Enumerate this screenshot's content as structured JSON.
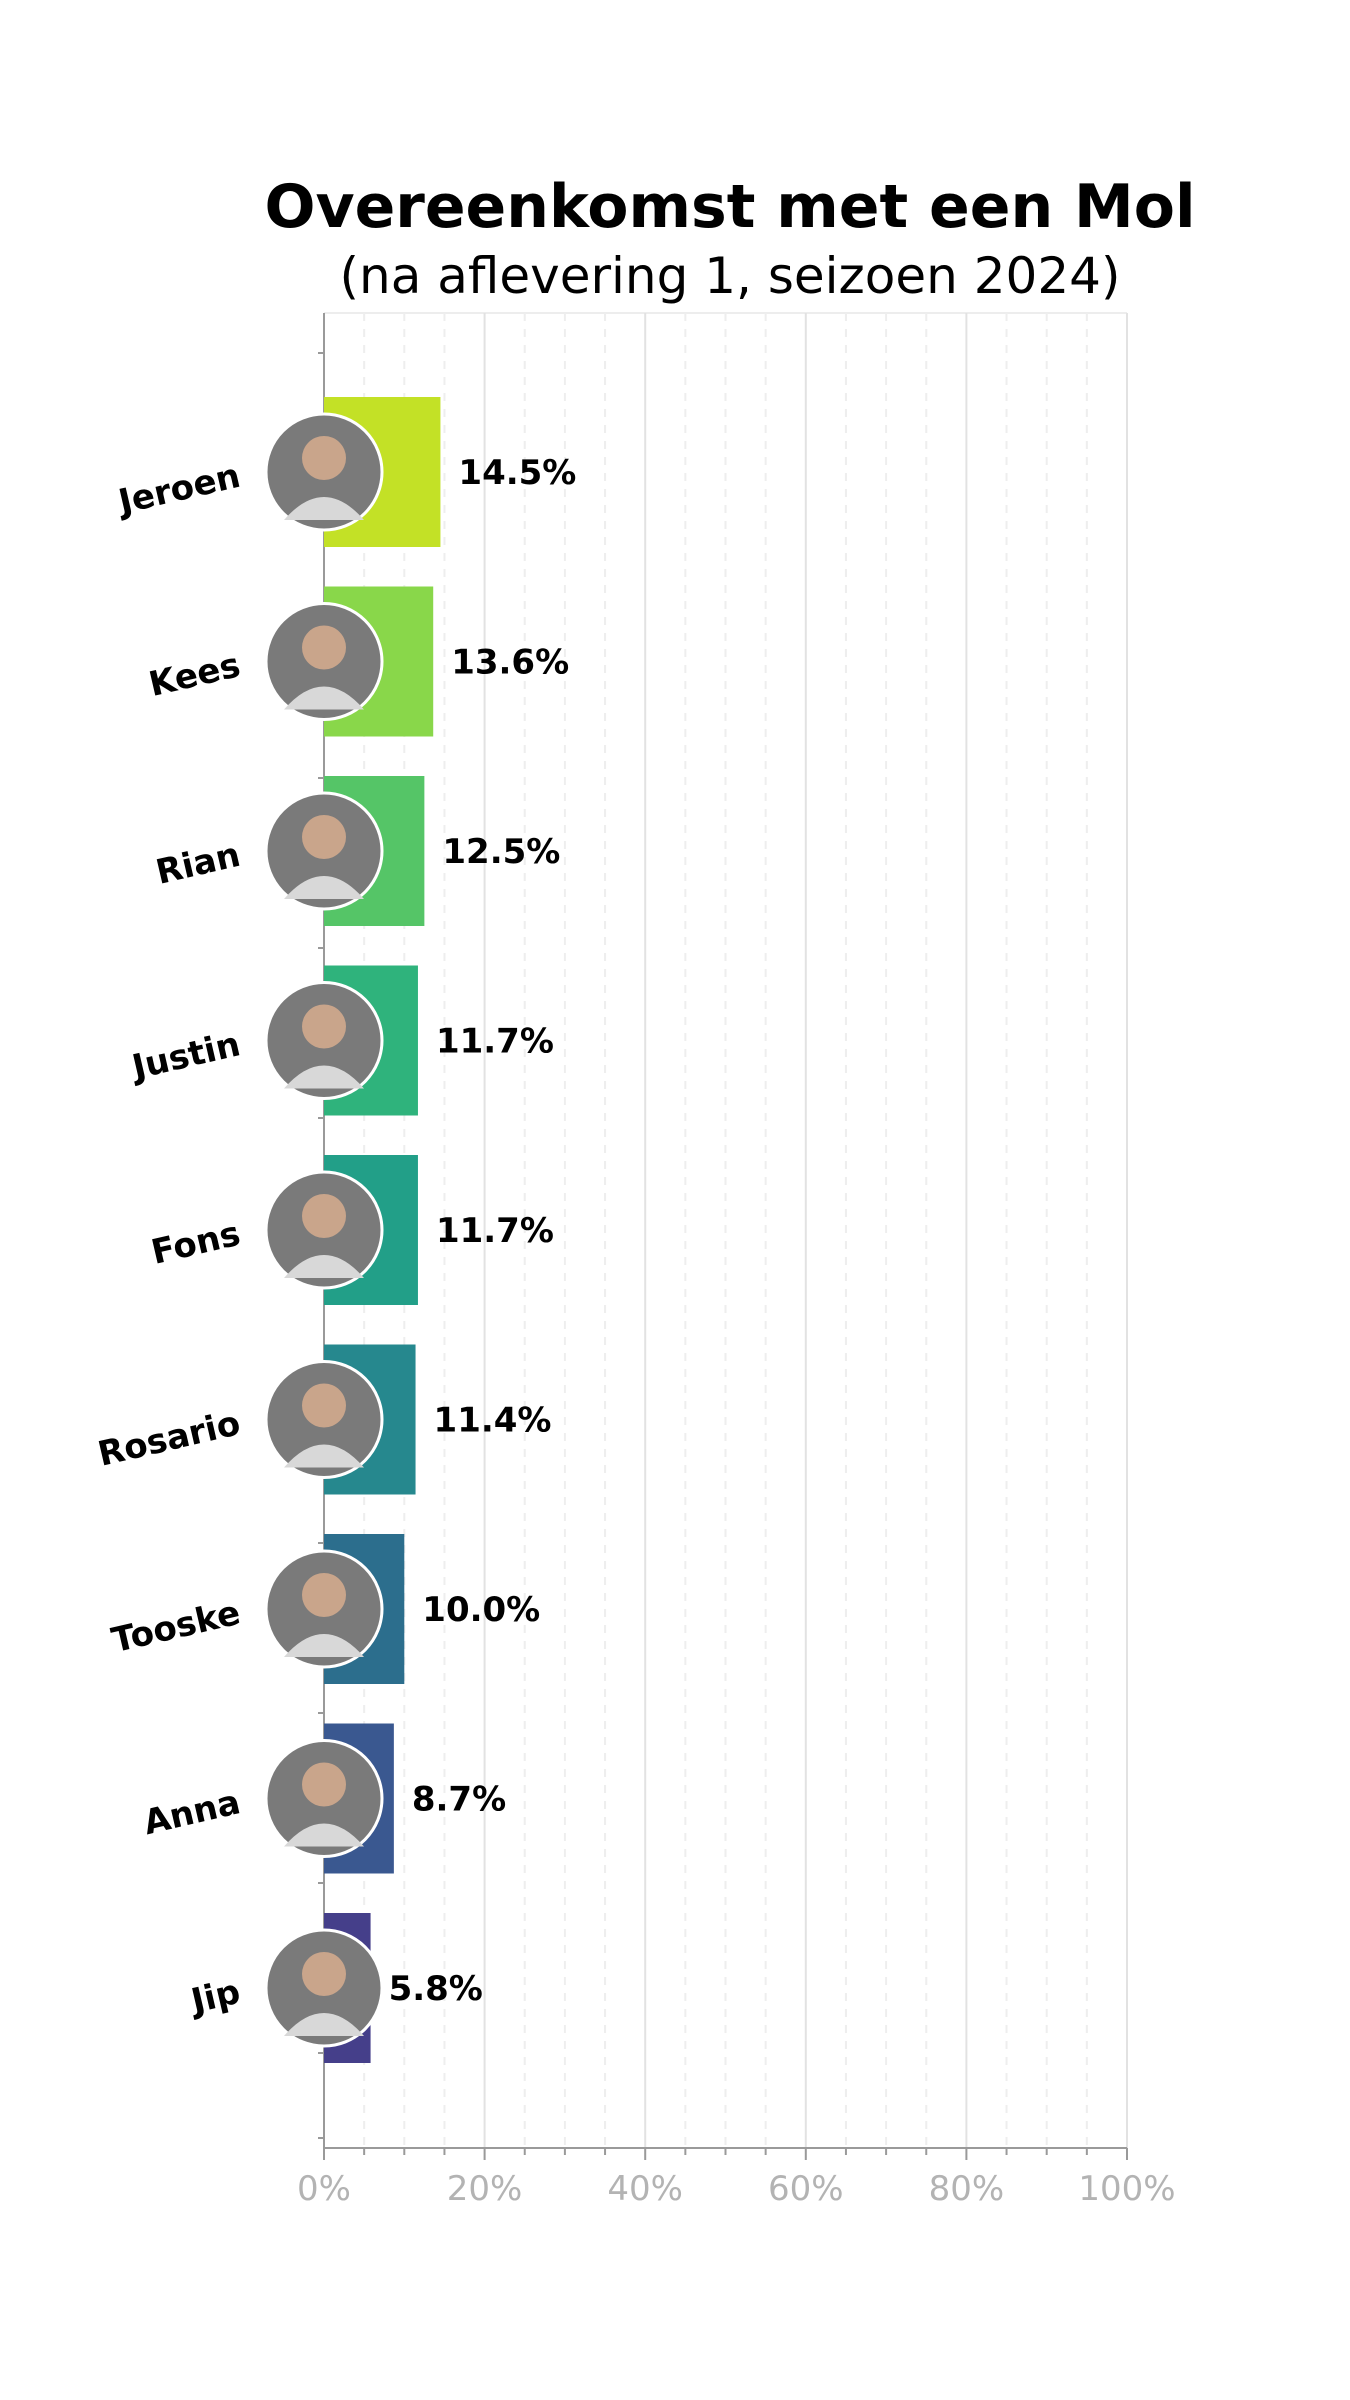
{
  "chart_data": {
    "type": "bar",
    "orientation": "horizontal",
    "title": "Overeenkomst met een Mol",
    "subtitle": "(na aflevering 1, seizoen 2024)",
    "categories": [
      "Jeroen",
      "Kees",
      "Rian",
      "Justin",
      "Fons",
      "Rosario",
      "Tooske",
      "Anna",
      "Jip"
    ],
    "values": [
      14.5,
      13.6,
      12.5,
      11.7,
      11.7,
      11.4,
      10.0,
      8.7,
      5.8
    ],
    "value_labels": [
      "14.5%",
      "13.6%",
      "12.5%",
      "11.7%",
      "11.7%",
      "11.4%",
      "10.0%",
      "8.7%",
      "5.8%"
    ],
    "bar_colors": [
      "#c3e126",
      "#89d74a",
      "#55c567",
      "#2fb37c",
      "#229f88",
      "#26888e",
      "#2c6e8d",
      "#3a5890",
      "#453f8a"
    ],
    "xlim": [
      0,
      100
    ],
    "x_ticks": [
      0,
      20,
      40,
      60,
      80,
      100
    ],
    "x_tick_labels": [
      "0%",
      "20%",
      "40%",
      "60%",
      "80%",
      "100%"
    ],
    "grid": "vertical",
    "legend": "none",
    "avatars": [
      "avatar",
      "avatar",
      "avatar",
      "avatar",
      "avatar",
      "avatar",
      "avatar",
      "avatar",
      "avatar"
    ]
  }
}
